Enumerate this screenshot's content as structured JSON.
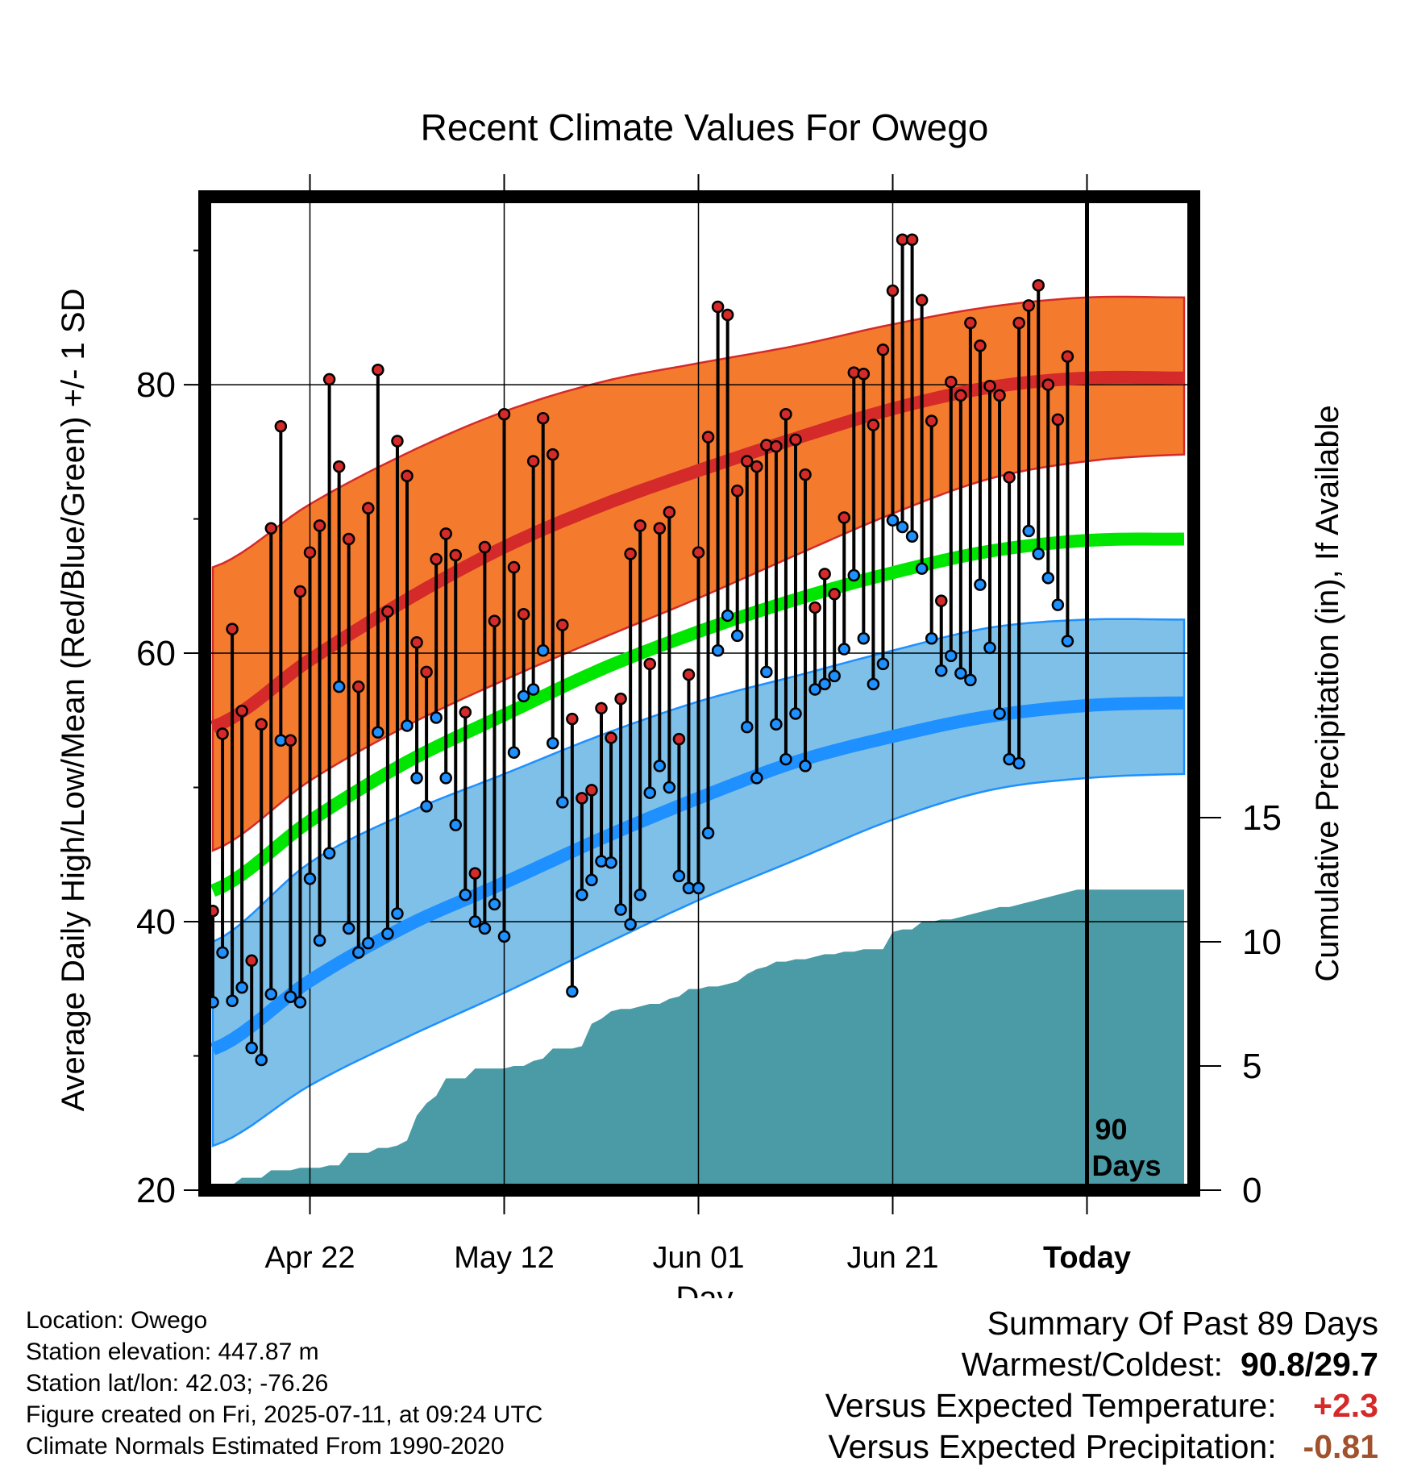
{
  "chart_data": {
    "type": "line",
    "title": "Recent Climate Values For Owego",
    "xlabel": "Day",
    "ylabel": "Average Daily High/Low/Mean (Red/Blue/Green) +/- 1 SD",
    "y2label": "Cumulative Precipitation (in), If Available",
    "ylim": [
      20,
      94
    ],
    "y2lim": [
      0,
      40
    ],
    "x_ticks": [
      {
        "day": 11,
        "label": "Apr 22"
      },
      {
        "day": 31,
        "label": "May 12"
      },
      {
        "day": 51,
        "label": "Jun 01"
      },
      {
        "day": 71,
        "label": "Jun 21"
      },
      {
        "day": 91,
        "label": "Today"
      }
    ],
    "y_ticks": [
      20,
      40,
      60,
      80
    ],
    "y2_ticks": [
      0,
      5,
      10,
      15
    ],
    "today_marker": {
      "day": 91,
      "label_line1": "90",
      "label_line2": "Days"
    },
    "normals": {
      "x": [
        1,
        11,
        21,
        31,
        41,
        51,
        61,
        71,
        81,
        91,
        101
      ],
      "high_mean": [
        54.5,
        59.5,
        64.0,
        67.9,
        71.0,
        73.6,
        76.0,
        78.2,
        79.8,
        80.5,
        80.5
      ],
      "high_upper": [
        66.4,
        71.1,
        74.9,
        78.0,
        80.2,
        81.6,
        82.9,
        84.5,
        85.8,
        86.5,
        86.5
      ],
      "high_lower": [
        45.3,
        50.5,
        54.6,
        58.0,
        61.1,
        64.1,
        67.3,
        70.4,
        73.0,
        74.3,
        74.8
      ],
      "mean": [
        42.3,
        47.5,
        51.9,
        55.4,
        58.8,
        61.6,
        64.0,
        66.0,
        67.6,
        68.4,
        68.5
      ],
      "low_mean": [
        30.5,
        35.6,
        39.7,
        42.9,
        46.2,
        49.2,
        51.9,
        53.8,
        55.3,
        56.1,
        56.3
      ],
      "low_upper": [
        38.5,
        44.4,
        48.1,
        51.0,
        53.9,
        56.4,
        58.3,
        60.2,
        61.9,
        62.5,
        62.5
      ],
      "low_lower": [
        23.3,
        27.8,
        31.4,
        34.7,
        38.2,
        41.6,
        44.6,
        47.6,
        49.8,
        50.7,
        51.0
      ]
    },
    "series": [
      {
        "name": "High",
        "color": "#d42a2a",
        "values": [
          40.8,
          54.0,
          61.8,
          55.7,
          37.1,
          54.7,
          69.3,
          76.9,
          53.5,
          64.6,
          67.5,
          69.5,
          80.4,
          73.9,
          68.5,
          57.5,
          70.8,
          81.1,
          63.1,
          75.8,
          73.2,
          60.8,
          58.6,
          67.0,
          68.9,
          67.3,
          55.6,
          43.6,
          67.9,
          62.4,
          77.8,
          66.4,
          62.9,
          74.3,
          77.5,
          74.8,
          62.1,
          55.1,
          49.2,
          49.8,
          55.9,
          53.7,
          56.6,
          67.4,
          69.5,
          59.2,
          69.3,
          70.5,
          53.6,
          58.4,
          67.5,
          76.1,
          85.8,
          85.2,
          72.1,
          74.3,
          73.9,
          75.5,
          75.4,
          77.8,
          75.9,
          73.3,
          63.4,
          65.9,
          64.4,
          70.1,
          80.9,
          80.8,
          77.0,
          82.6,
          87.0,
          90.8,
          90.8,
          86.3,
          77.3,
          63.9,
          80.2,
          79.2,
          84.6,
          82.9,
          79.9,
          79.2,
          73.1,
          84.6,
          85.9,
          87.4,
          80.0,
          77.4,
          82.1
        ]
      },
      {
        "name": "Low",
        "color": "#1e90ff",
        "values": [
          34.0,
          37.7,
          34.1,
          35.1,
          30.6,
          29.7,
          34.6,
          53.5,
          34.4,
          34.0,
          43.2,
          38.6,
          45.1,
          57.5,
          39.5,
          37.7,
          38.4,
          54.1,
          39.1,
          40.6,
          54.6,
          50.7,
          48.6,
          55.2,
          50.7,
          47.2,
          42.0,
          40.0,
          39.5,
          41.3,
          38.9,
          52.6,
          56.8,
          57.3,
          60.2,
          53.3,
          48.9,
          34.8,
          42.0,
          43.1,
          44.5,
          44.4,
          40.9,
          39.8,
          42.0,
          49.6,
          51.6,
          50.0,
          43.4,
          42.5,
          42.5,
          46.6,
          60.2,
          62.8,
          61.3,
          54.5,
          50.7,
          58.6,
          54.7,
          52.1,
          55.5,
          51.6,
          57.3,
          57.7,
          58.3,
          60.3,
          65.8,
          61.1,
          57.7,
          59.2,
          69.9,
          69.4,
          68.7,
          66.3,
          61.1,
          58.7,
          59.8,
          58.5,
          58.0,
          65.1,
          60.4,
          55.5,
          52.1,
          51.8,
          69.1,
          67.4,
          65.6,
          63.6,
          60.9
        ]
      }
    ],
    "precip_cumulative": [
      0.0,
      0.0,
      0.2,
      0.5,
      0.5,
      0.5,
      0.8,
      0.8,
      0.8,
      0.9,
      0.9,
      0.9,
      1.0,
      1.0,
      1.5,
      1.5,
      1.5,
      1.7,
      1.7,
      1.8,
      2.0,
      3.0,
      3.5,
      3.8,
      4.5,
      4.5,
      4.5,
      4.9,
      4.9,
      4.9,
      4.9,
      5.0,
      5.0,
      5.2,
      5.3,
      5.7,
      5.7,
      5.7,
      5.8,
      6.7,
      6.9,
      7.2,
      7.3,
      7.3,
      7.4,
      7.5,
      7.5,
      7.7,
      7.8,
      8.1,
      8.1,
      8.2,
      8.2,
      8.3,
      8.4,
      8.7,
      8.9,
      9.0,
      9.2,
      9.2,
      9.3,
      9.3,
      9.4,
      9.5,
      9.5,
      9.6,
      9.6,
      9.7,
      9.7,
      9.7,
      10.4,
      10.5,
      10.5,
      10.8,
      10.8,
      10.9,
      10.9,
      11.0,
      11.1,
      11.2,
      11.3,
      11.4,
      11.4,
      11.5,
      11.6,
      11.7,
      11.8,
      11.9,
      12.0,
      12.1,
      12.1,
      12.1,
      12.1,
      12.1,
      12.1,
      12.1,
      12.1,
      12.1,
      12.1,
      12.1,
      12.1
    ],
    "colors": {
      "high_band": "#f47b2e",
      "high_line": "#d42a2a",
      "mean_line": "#00e600",
      "low_band": "#7fc0e8",
      "low_line": "#1e90ff",
      "precip": "#4a9ba5"
    },
    "grid": true,
    "legend": "none"
  },
  "info": {
    "location": "Location: Owego",
    "elevation": "Station elevation: 447.87 m",
    "latlon": "Station lat/lon: 42.03; -76.26",
    "created": "Figure created on Fri, 2025-07-11, at 09:24 UTC",
    "normals": "Climate Normals Estimated From 1990-2020"
  },
  "summary": {
    "title": "Summary Of Past 89 Days",
    "warm_label": "Warmest/Coldest:",
    "warmest": "90.8",
    "slash": "/",
    "coldest": "29.7",
    "temp_label": "Versus Expected Temperature:",
    "temp_value": "+2.3",
    "temp_color": "#d42a2a",
    "precip_label": "Versus Expected Precipitation:",
    "precip_value": "-0.81",
    "precip_color": "#a0522d"
  }
}
